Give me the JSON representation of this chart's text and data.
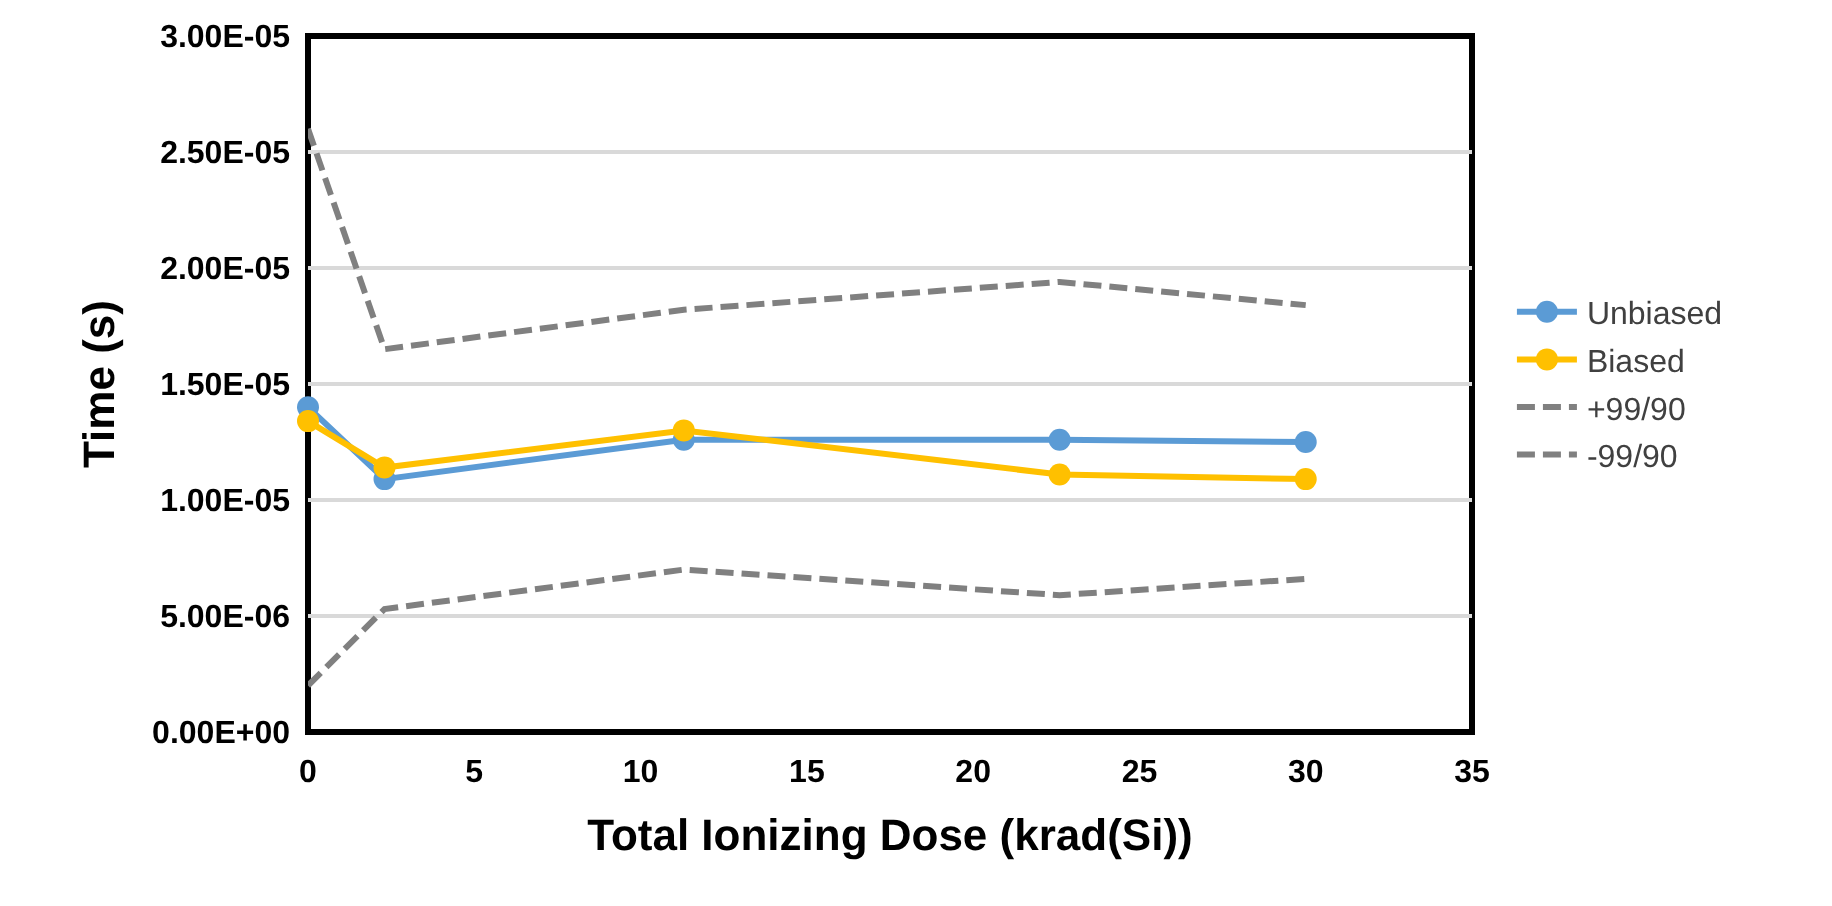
{
  "chart_data": {
    "type": "line",
    "xlabel": "Total Ionizing Dose (krad(Si))",
    "ylabel": "Time (s)",
    "x": [
      0,
      2.3,
      11.3,
      22.6,
      30
    ],
    "series": [
      {
        "name": "Unbiased",
        "color": "#5b9bd5",
        "values": [
          1.4e-05,
          1.09e-05,
          1.26e-05,
          1.26e-05,
          1.25e-05
        ],
        "marker": "circle",
        "line_style": "solid"
      },
      {
        "name": "Biased",
        "color": "#ffc000",
        "values": [
          1.34e-05,
          1.14e-05,
          1.3e-05,
          1.11e-05,
          1.09e-05
        ],
        "marker": "circle",
        "line_style": "solid"
      },
      {
        "name": "+99/90",
        "color": "#808080",
        "values": [
          2.6e-05,
          1.65e-05,
          1.82e-05,
          1.94e-05,
          1.84e-05
        ],
        "marker": "none",
        "line_style": "dashed"
      },
      {
        "name": "-99/90",
        "color": "#808080",
        "values": [
          2e-06,
          5.3e-06,
          7e-06,
          5.9e-06,
          6.6e-06
        ],
        "marker": "none",
        "line_style": "dashed"
      }
    ],
    "xlim": [
      0,
      35
    ],
    "xticks": [
      0,
      5,
      10,
      15,
      20,
      25,
      30,
      35
    ],
    "ylim": [
      0,
      3e-05
    ],
    "yticks": [
      {
        "value": 0,
        "label": "0.00E+00"
      },
      {
        "value": 5e-06,
        "label": "5.00E-06"
      },
      {
        "value": 1e-05,
        "label": "1.00E-05"
      },
      {
        "value": 1.5e-05,
        "label": "1.50E-05"
      },
      {
        "value": 2e-05,
        "label": "2.00E-05"
      },
      {
        "value": 2.5e-05,
        "label": "2.50E-05"
      },
      {
        "value": 3e-05,
        "label": "3.00E-05"
      }
    ],
    "grid": "y",
    "legend": "right"
  }
}
